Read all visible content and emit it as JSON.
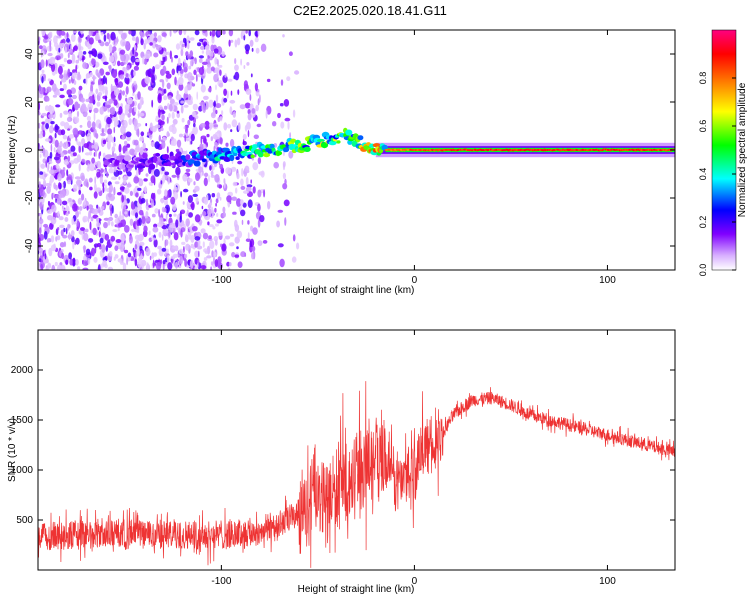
{
  "title": "C2E2.2025.020.18.41.G11",
  "chart_data": [
    {
      "type": "heatmap",
      "xlabel": "Height of straight line (km)",
      "ylabel": "Frequency (Hz)",
      "xlim": [
        -195,
        135
      ],
      "ylim": [
        -50,
        50
      ],
      "xticks": [
        -100,
        0,
        100
      ],
      "yticks": [
        -40,
        -20,
        0,
        20,
        40
      ],
      "colorbar": {
        "label": "Normalized spectral amplitude",
        "ticks": [
          0.0,
          0.2,
          0.4,
          0.6,
          0.8
        ],
        "range": [
          0,
          1
        ],
        "colors": [
          "#ffffff",
          "#8000ff",
          "#0000ff",
          "#00ffff",
          "#00ff00",
          "#ffff00",
          "#ff8000",
          "#ff0000",
          "#ff0080"
        ]
      },
      "ridge": {
        "x": [
          -150,
          -120,
          -100,
          -80,
          -60,
          -45,
          -35,
          -25,
          -15,
          0,
          20,
          60,
          100,
          135
        ],
        "y": [
          -5,
          -4,
          -2,
          0,
          2,
          4,
          6,
          2,
          0,
          0,
          0,
          0,
          0,
          0
        ],
        "intensity": [
          0.15,
          0.25,
          0.4,
          0.5,
          0.55,
          0.6,
          0.5,
          0.7,
          0.8,
          0.85,
          0.9,
          0.9,
          0.9,
          0.88
        ]
      },
      "grid": false
    },
    {
      "type": "line",
      "xlabel": "Height of straight line (km)",
      "ylabel": "SNR (10 * v/v)",
      "xlim": [
        -195,
        135
      ],
      "ylim": [
        0,
        2400
      ],
      "xticks": [
        -100,
        0,
        100
      ],
      "yticks": [
        500,
        1000,
        1500,
        2000
      ],
      "color": "#ee3333",
      "series": [
        {
          "x": [
            -195,
            -180,
            -160,
            -140,
            -120,
            -100,
            -80,
            -65,
            -55,
            -45,
            -35,
            -25,
            -20,
            -15,
            -10,
            -5,
            0,
            5,
            10,
            20,
            30,
            40,
            50,
            60,
            80,
            100,
            120,
            135
          ],
          "y": [
            330,
            350,
            360,
            360,
            350,
            350,
            380,
            500,
            650,
            700,
            850,
            1000,
            1150,
            1050,
            900,
            950,
            1000,
            1250,
            1200,
            1550,
            1700,
            1720,
            1650,
            1550,
            1450,
            1350,
            1250,
            1180
          ]
        }
      ],
      "grid": false
    }
  ]
}
